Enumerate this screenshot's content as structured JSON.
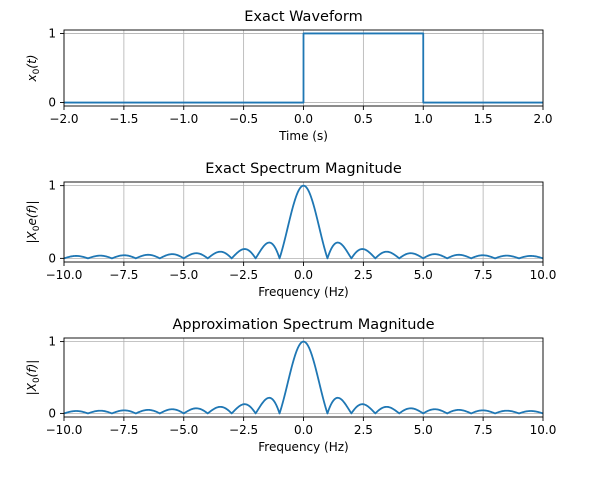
{
  "colors": {
    "line": "#1f77b4",
    "grid": "#b0b0b0",
    "axis": "#000000"
  },
  "chart_data": [
    {
      "type": "line",
      "title": "Exact Waveform",
      "xlabel": "Time (s)",
      "ylabel": "x0(t)",
      "ylabel_parts": {
        "base": "x",
        "sub": "0",
        "arg": "(t)"
      },
      "xlim": [
        -2.0,
        2.0
      ],
      "ylim": [
        -0.05,
        1.05
      ],
      "xticks": [
        -2.0,
        -1.5,
        -1.0,
        -0.5,
        0.0,
        0.5,
        1.0,
        1.5,
        2.0
      ],
      "xtick_labels": [
        "−2.0",
        "−1.5",
        "−1.0",
        "−0.5",
        "0.0",
        "0.5",
        "1.0",
        "1.5",
        "2.0"
      ],
      "yticks": [
        0,
        1
      ],
      "ytick_labels": [
        "0",
        "1"
      ],
      "grid": true,
      "series": [
        {
          "kind": "rect",
          "x": [
            -2.0,
            0.0,
            0.0,
            1.0,
            1.0,
            2.0
          ],
          "y": [
            0,
            0,
            1,
            1,
            0,
            0
          ]
        }
      ]
    },
    {
      "type": "line",
      "title": "Exact Spectrum Magnitude",
      "xlabel": "Frequency (Hz)",
      "ylabel": "|X0e(f)|",
      "ylabel_parts": {
        "base": "|X",
        "sub": "0",
        "arg": "e(f)|"
      },
      "xlim": [
        -10.0,
        10.0
      ],
      "ylim": [
        -0.05,
        1.05
      ],
      "xticks": [
        -10.0,
        -7.5,
        -5.0,
        -2.5,
        0.0,
        2.5,
        5.0,
        7.5,
        10.0
      ],
      "xtick_labels": [
        "−10.0",
        "−7.5",
        "−5.0",
        "−2.5",
        "0.0",
        "2.5",
        "5.0",
        "7.5",
        "10.0"
      ],
      "yticks": [
        0,
        1
      ],
      "ytick_labels": [
        "0",
        "1"
      ],
      "grid": true,
      "series": [
        {
          "kind": "sinc",
          "x_range": [
            -10.0,
            10.0
          ],
          "samples": 801,
          "function": "|sin(pi f)/(pi f)|"
        }
      ]
    },
    {
      "type": "line",
      "title": "Approximation Spectrum Magnitude",
      "xlabel": "Frequency (Hz)",
      "ylabel": "|X0(f)|",
      "ylabel_parts": {
        "base": "|X",
        "sub": "0",
        "arg": "(f)|"
      },
      "xlim": [
        -10.0,
        10.0
      ],
      "ylim": [
        -0.05,
        1.05
      ],
      "xticks": [
        -10.0,
        -7.5,
        -5.0,
        -2.5,
        0.0,
        2.5,
        5.0,
        7.5,
        10.0
      ],
      "xtick_labels": [
        "−10.0",
        "−7.5",
        "−5.0",
        "−2.5",
        "0.0",
        "2.5",
        "5.0",
        "7.5",
        "10.0"
      ],
      "yticks": [
        0,
        1
      ],
      "ytick_labels": [
        "0",
        "1"
      ],
      "grid": true,
      "series": [
        {
          "kind": "sinc",
          "x_range": [
            -10.0,
            10.0
          ],
          "samples": 801,
          "function": "|sin(pi f)/(pi f)|"
        }
      ]
    }
  ]
}
